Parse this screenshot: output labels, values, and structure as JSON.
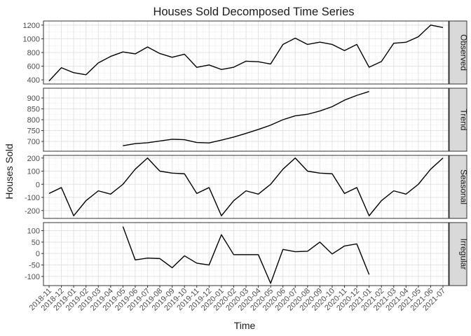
{
  "chart_data": {
    "type": "line",
    "title": "Houses Sold Decomposed Time Series",
    "xlabel": "Time",
    "ylabel": "Houses Sold",
    "x": [
      "2018-11",
      "2018-12",
      "2019-01",
      "2019-02",
      "2019-03",
      "2019-04",
      "2019-05",
      "2019-06",
      "2019-07",
      "2019-08",
      "2019-09",
      "2019-10",
      "2019-11",
      "2019-12",
      "2020-01",
      "2020-02",
      "2020-03",
      "2020-04",
      "2020-05",
      "2020-06",
      "2020-07",
      "2020-08",
      "2020-09",
      "2020-10",
      "2020-11",
      "2020-12",
      "2021-01",
      "2021-02",
      "2021-03",
      "2021-04",
      "2021-05",
      "2021-06",
      "2021-07"
    ],
    "grid": true,
    "panels": [
      {
        "name": "Observed",
        "ylim": [
          340,
          1260
        ],
        "yticks": [
          400,
          600,
          800,
          1000,
          1200
        ],
        "values": [
          385,
          578,
          505,
          475,
          648,
          743,
          808,
          780,
          880,
          785,
          730,
          775,
          583,
          618,
          552,
          585,
          673,
          665,
          632,
          918,
          1010,
          918,
          952,
          918,
          828,
          918,
          585,
          668,
          935,
          950,
          1030,
          1200,
          1165
        ]
      },
      {
        "name": "Trend",
        "ylim": [
          655,
          945
        ],
        "yticks": [
          700,
          750,
          800,
          850,
          900
        ],
        "values": [
          null,
          null,
          null,
          null,
          null,
          null,
          680,
          690,
          694,
          702,
          710,
          708,
          695,
          693,
          706,
          720,
          737,
          755,
          775,
          800,
          818,
          825,
          840,
          860,
          890,
          912,
          930,
          null,
          null,
          null,
          null,
          null,
          null
        ]
      },
      {
        "name": "Seasonal",
        "ylim": [
          -260,
          220
        ],
        "yticks": [
          -200,
          -100,
          0,
          100,
          200
        ],
        "values": [
          -70,
          -25,
          -240,
          -125,
          -50,
          -75,
          0,
          115,
          200,
          100,
          85,
          80,
          -70,
          -25,
          -240,
          -125,
          -50,
          -75,
          0,
          115,
          200,
          100,
          85,
          80,
          -70,
          -25,
          -240,
          -125,
          -50,
          -75,
          0,
          115,
          200
        ]
      },
      {
        "name": "Irregular",
        "ylim": [
          -140,
          135
        ],
        "yticks": [
          -100,
          -50,
          0,
          50,
          100
        ],
        "values": [
          null,
          null,
          null,
          null,
          null,
          null,
          118,
          -28,
          -20,
          -22,
          -62,
          -10,
          -42,
          -50,
          82,
          -5,
          -5,
          -5,
          -130,
          18,
          8,
          10,
          50,
          -2,
          33,
          42,
          -92,
          null,
          null,
          null,
          null,
          null,
          null
        ]
      }
    ]
  }
}
